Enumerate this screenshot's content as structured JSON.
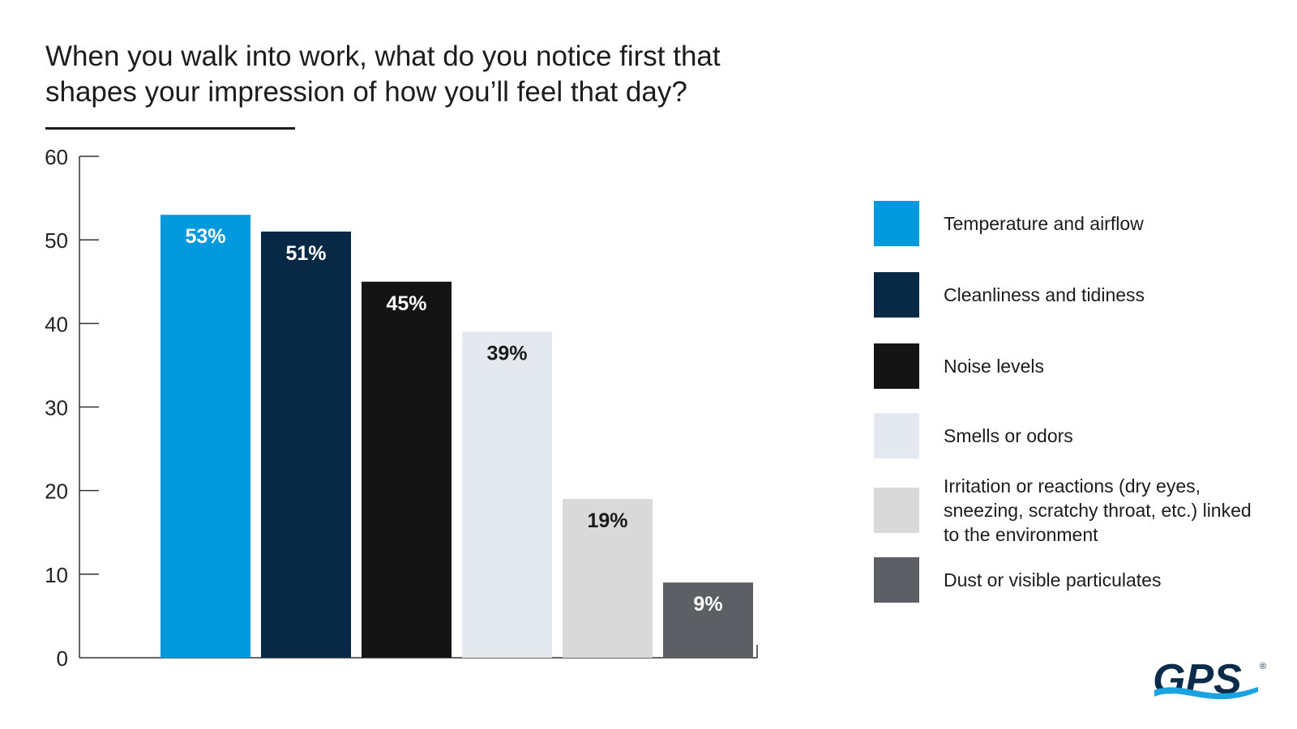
{
  "title_line1": "When you walk into work, what do you notice first that",
  "title_line2": "shapes your impression of how you’ll feel that day?",
  "chart_data": {
    "type": "bar",
    "categories": [
      "Temperature and airflow",
      "Cleanliness and tidiness",
      "Noise levels",
      "Smells or odors",
      "Irritation or reactions (dry eyes, sneezing, scratchy throat, etc.) linked to the environment",
      "Dust or visible particulates"
    ],
    "values": [
      53,
      51,
      45,
      39,
      19,
      9
    ],
    "data_labels": [
      "53%",
      "51%",
      "45%",
      "39%",
      "19%",
      "9%"
    ],
    "colors": [
      "#0099dd",
      "#072946",
      "#141414",
      "#e3e9ef",
      "#d9d9d9",
      "#5c6064"
    ],
    "label_colors": [
      "#ffffff",
      "#ffffff",
      "#ffffff",
      "#1a1a1a",
      "#1a1a1a",
      "#ffffff"
    ],
    "title": "When you walk into work, what do you notice first that shapes your impression of how you’ll feel that day?",
    "xlabel": "",
    "ylabel": "",
    "ylim": [
      0,
      60
    ],
    "yticks": [
      0,
      10,
      20,
      30,
      40,
      50,
      60
    ],
    "grid": false,
    "legend": "right"
  },
  "legend": {
    "items": [
      {
        "label": "Temperature and airflow",
        "color": "#0099dd"
      },
      {
        "label": "Cleanliness and tidiness",
        "color": "#072946"
      },
      {
        "label": "Noise levels",
        "color": "#141414"
      },
      {
        "label": "Smells or odors",
        "color": "#e3e9ef"
      },
      {
        "label": "Irritation or reactions (dry eyes, sneezing, scratchy throat, etc.) linked to the environment",
        "color": "#d9d9d9"
      },
      {
        "label": "Dust or visible particulates",
        "color": "#5c6064"
      }
    ]
  },
  "logo": {
    "text": "GPS",
    "mark": "®",
    "color": "#0b2b4a",
    "wave_color": "#1aa3e0"
  }
}
